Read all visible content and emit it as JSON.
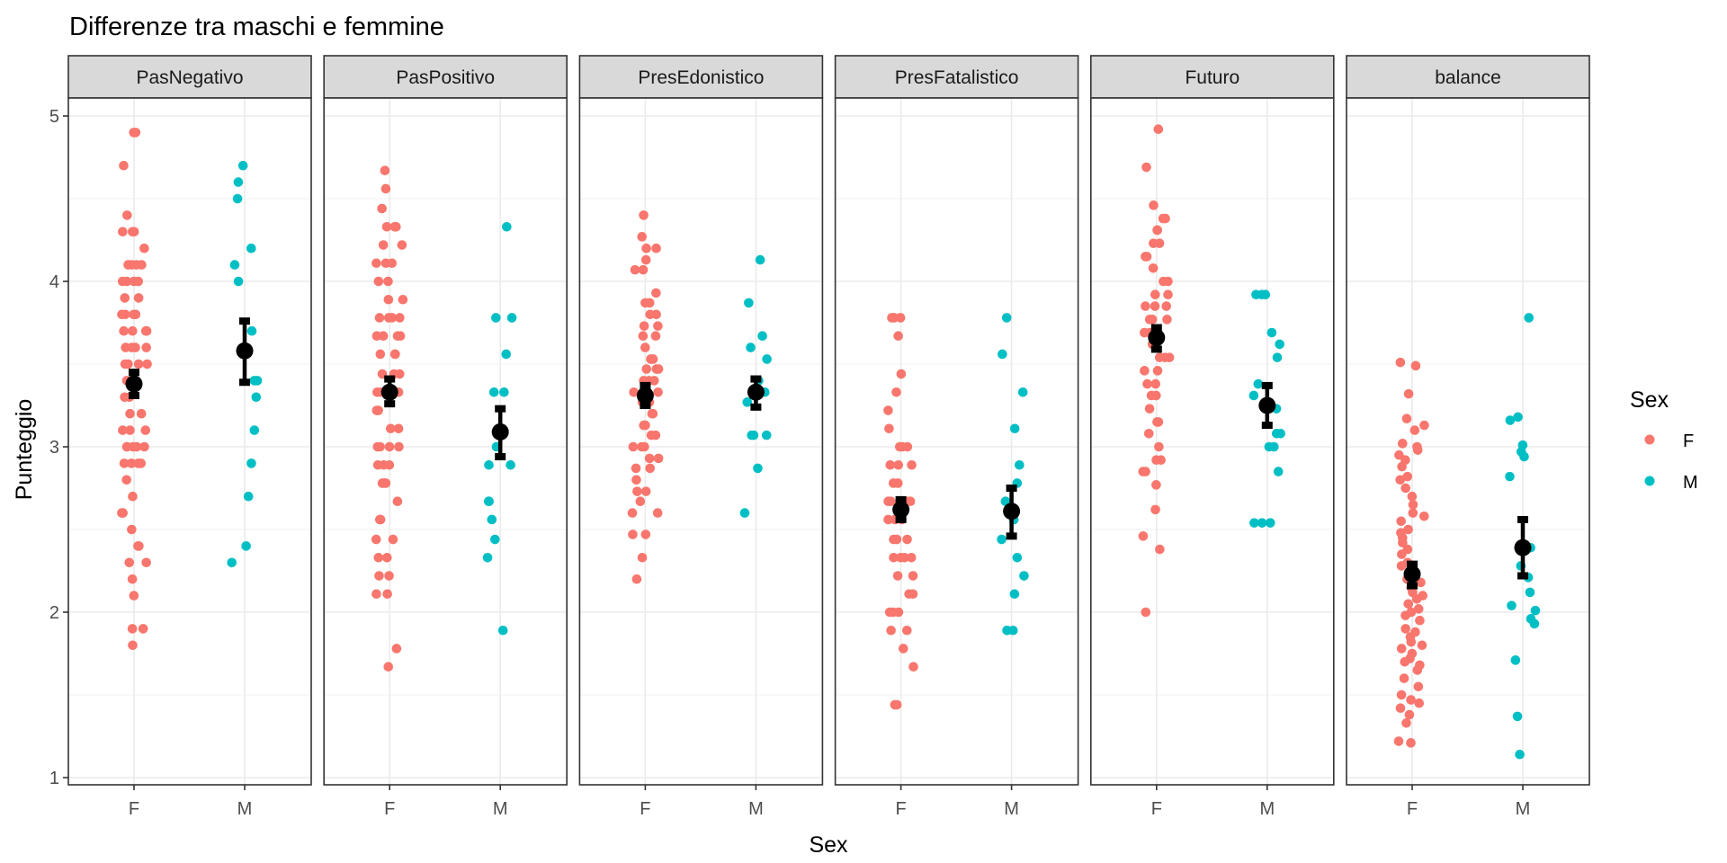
{
  "chart_data": {
    "type": "scatter",
    "title": "Differenze tra maschi e femmine",
    "xlabel": "Sex",
    "ylabel": "Punteggio",
    "ylim": [
      0.97,
      5.13
    ],
    "yticks": [
      1,
      2,
      3,
      4,
      5
    ],
    "ytick_labels": [
      "1",
      "2",
      "3",
      "4",
      "5"
    ],
    "categories": [
      "F",
      "M"
    ],
    "grid": true,
    "facet_labels": [
      "PasNegativo",
      "PasPositivo",
      "PresEdonistico",
      "PresFatalistico",
      "Futuro",
      "balance"
    ],
    "legend": {
      "title": "Sex",
      "position": "right",
      "entries": [
        {
          "label": "F",
          "color": "#F8766D"
        },
        {
          "label": "M",
          "color": "#00BFC4"
        }
      ]
    },
    "summary_color": "#000000",
    "panels": [
      {
        "name": "PasNegativo",
        "F": [
          4.9,
          4.9,
          4.7,
          4.4,
          4.3,
          4.3,
          4.3,
          4.2,
          4.1,
          4.1,
          4.1,
          4.1,
          4.0,
          4.0,
          4.0,
          4.0,
          3.9,
          3.9,
          3.8,
          3.8,
          3.8,
          3.8,
          3.7,
          3.7,
          3.7,
          3.7,
          3.6,
          3.6,
          3.6,
          3.6,
          3.5,
          3.5,
          3.5,
          3.5,
          3.4,
          3.4,
          3.4,
          3.3,
          3.3,
          3.2,
          3.2,
          3.1,
          3.1,
          3.1,
          3.0,
          3.0,
          3.0,
          3.0,
          3.0,
          2.9,
          2.9,
          2.9,
          2.9,
          2.8,
          2.7,
          2.6,
          2.6,
          2.5,
          2.4,
          2.4,
          2.3,
          2.3,
          2.2,
          2.1,
          1.9,
          1.9,
          1.8
        ],
        "M": [
          4.7,
          4.6,
          4.5,
          4.2,
          4.1,
          4.0,
          3.7,
          3.4,
          3.4,
          3.3,
          3.1,
          2.9,
          2.7,
          2.4,
          2.3
        ],
        "F_mean": 3.38,
        "F_ci": [
          3.31,
          3.45
        ],
        "M_mean": 3.58,
        "M_ci": [
          3.39,
          3.76
        ]
      },
      {
        "name": "PasPositivo",
        "F": [
          4.67,
          4.56,
          4.44,
          4.33,
          4.33,
          4.33,
          4.22,
          4.22,
          4.11,
          4.11,
          4.11,
          4.0,
          4.0,
          3.89,
          3.89,
          3.78,
          3.78,
          3.78,
          3.78,
          3.67,
          3.67,
          3.67,
          3.67,
          3.56,
          3.56,
          3.56,
          3.44,
          3.44,
          3.44,
          3.33,
          3.33,
          3.33,
          3.22,
          3.22,
          3.11,
          3.11,
          3.0,
          3.0,
          3.0,
          3.0,
          2.89,
          2.89,
          2.89,
          2.78,
          2.78,
          2.78,
          2.67,
          2.56,
          2.56,
          2.44,
          2.44,
          2.33,
          2.33,
          2.22,
          2.22,
          2.11,
          2.11,
          1.78,
          1.67
        ],
        "M": [
          4.33,
          3.78,
          3.78,
          3.56,
          3.33,
          3.33,
          3.0,
          2.89,
          2.89,
          2.67,
          2.67,
          2.56,
          2.44,
          2.33,
          1.89
        ],
        "F_mean": 3.33,
        "F_ci": [
          3.26,
          3.41
        ],
        "M_mean": 3.09,
        "M_ci": [
          2.94,
          3.23
        ]
      },
      {
        "name": "PresEdonistico",
        "F": [
          4.4,
          4.27,
          4.2,
          4.2,
          4.13,
          4.07,
          4.07,
          3.93,
          3.87,
          3.87,
          3.8,
          3.8,
          3.73,
          3.73,
          3.67,
          3.67,
          3.6,
          3.53,
          3.53,
          3.47,
          3.47,
          3.47,
          3.4,
          3.4,
          3.4,
          3.33,
          3.33,
          3.27,
          3.27,
          3.27,
          3.2,
          3.2,
          3.13,
          3.13,
          3.07,
          3.07,
          3.0,
          3.0,
          3.0,
          2.93,
          2.93,
          2.87,
          2.87,
          2.8,
          2.73,
          2.73,
          2.67,
          2.6,
          2.6,
          2.47,
          2.47,
          2.33,
          2.2
        ],
        "M": [
          4.13,
          3.87,
          3.67,
          3.6,
          3.53,
          3.4,
          3.33,
          3.33,
          3.27,
          3.07,
          3.07,
          3.07,
          2.87,
          2.6
        ],
        "F_mean": 3.31,
        "F_ci": [
          3.25,
          3.37
        ],
        "M_mean": 3.33,
        "M_ci": [
          3.24,
          3.41
        ]
      },
      {
        "name": "PresFatalistico",
        "F": [
          3.78,
          3.78,
          3.78,
          3.67,
          3.44,
          3.33,
          3.22,
          3.11,
          3.0,
          3.0,
          3.0,
          2.89,
          2.89,
          2.89,
          2.78,
          2.78,
          2.67,
          2.67,
          2.67,
          2.67,
          2.56,
          2.56,
          2.56,
          2.44,
          2.44,
          2.44,
          2.33,
          2.33,
          2.33,
          2.33,
          2.22,
          2.22,
          2.11,
          2.11,
          2.0,
          2.0,
          2.0,
          1.89,
          1.89,
          1.78,
          1.67,
          1.44,
          1.44
        ],
        "M": [
          3.78,
          3.56,
          3.33,
          3.11,
          2.89,
          2.78,
          2.67,
          2.56,
          2.44,
          2.33,
          2.22,
          2.11,
          1.89,
          1.89,
          1.89
        ],
        "F_mean": 2.62,
        "F_ci": [
          2.56,
          2.68
        ],
        "M_mean": 2.61,
        "M_ci": [
          2.46,
          2.75
        ]
      },
      {
        "name": "Futuro",
        "F": [
          4.92,
          4.69,
          4.46,
          4.38,
          4.38,
          4.31,
          4.31,
          4.23,
          4.23,
          4.15,
          4.15,
          4.08,
          4.0,
          4.0,
          3.92,
          3.92,
          3.85,
          3.85,
          3.85,
          3.77,
          3.77,
          3.77,
          3.69,
          3.69,
          3.62,
          3.62,
          3.54,
          3.54,
          3.54,
          3.46,
          3.46,
          3.38,
          3.38,
          3.31,
          3.31,
          3.23,
          3.15,
          3.15,
          3.08,
          3.0,
          2.92,
          2.92,
          2.85,
          2.85,
          2.77,
          2.62,
          2.46,
          2.38,
          2.0
        ],
        "M": [
          3.92,
          3.92,
          3.92,
          3.69,
          3.62,
          3.54,
          3.38,
          3.31,
          3.23,
          3.08,
          3.08,
          3.0,
          3.0,
          2.85,
          2.54,
          2.54,
          2.54
        ],
        "F_mean": 3.66,
        "F_ci": [
          3.59,
          3.72
        ],
        "M_mean": 3.25,
        "M_ci": [
          3.13,
          3.37
        ]
      },
      {
        "name": "balance",
        "F": [
          3.51,
          3.49,
          3.32,
          3.17,
          3.13,
          3.1,
          3.02,
          3.0,
          2.98,
          2.95,
          2.92,
          2.88,
          2.82,
          2.8,
          2.75,
          2.7,
          2.65,
          2.6,
          2.58,
          2.55,
          2.5,
          2.48,
          2.45,
          2.42,
          2.38,
          2.35,
          2.3,
          2.28,
          2.25,
          2.2,
          2.18,
          2.15,
          2.12,
          2.1,
          2.08,
          2.05,
          2.02,
          2.0,
          1.98,
          1.95,
          1.9,
          1.88,
          1.85,
          1.82,
          1.8,
          1.78,
          1.75,
          1.72,
          1.7,
          1.68,
          1.65,
          1.6,
          1.55,
          1.5,
          1.47,
          1.45,
          1.42,
          1.38,
          1.33,
          1.22,
          1.21
        ],
        "M": [
          3.78,
          3.18,
          3.16,
          3.01,
          2.97,
          2.94,
          2.82,
          2.39,
          2.28,
          2.21,
          2.12,
          2.04,
          2.01,
          1.96,
          1.93,
          1.71,
          1.37,
          1.14
        ],
        "F_mean": 2.23,
        "F_ci": [
          2.16,
          2.29
        ],
        "M_mean": 2.39,
        "M_ci": [
          2.22,
          2.56
        ]
      }
    ]
  }
}
